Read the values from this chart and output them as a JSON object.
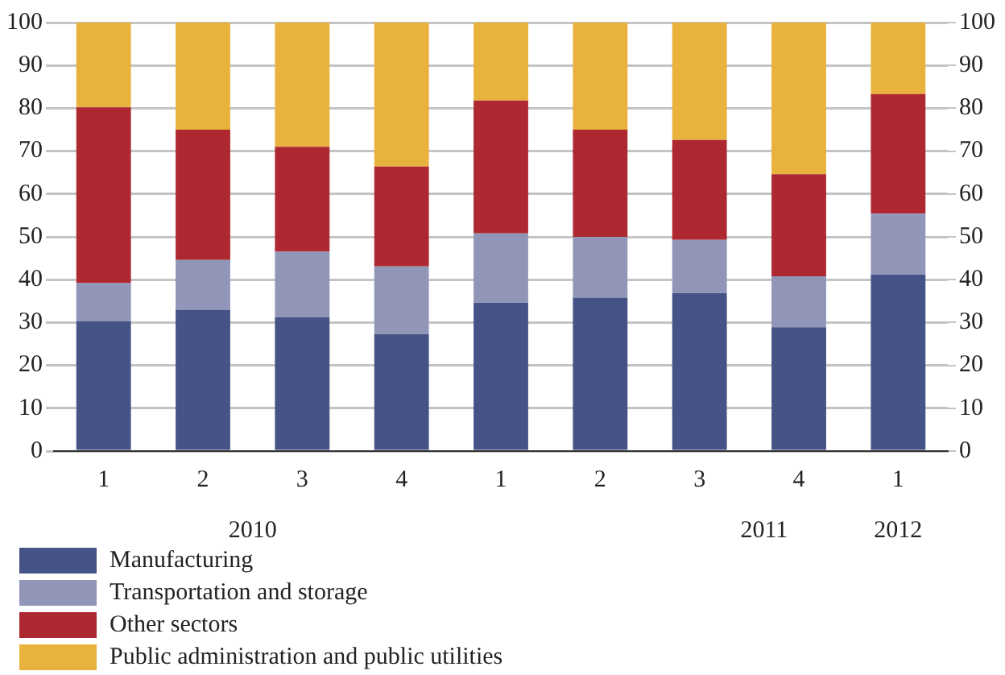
{
  "chart_data": {
    "type": "bar",
    "stacked": true,
    "categories": [
      "1",
      "2",
      "3",
      "4",
      "1",
      "2",
      "3",
      "4",
      "1"
    ],
    "series": [
      {
        "name": "Manufacturing",
        "color": "#455386",
        "values": [
          30.3,
          33,
          31.2,
          27.3,
          34.6,
          35.8,
          36.9,
          28.9,
          41.2
        ]
      },
      {
        "name": "Transportation and storage",
        "color": "#9196b8",
        "values": [
          8.9,
          11.6,
          15.3,
          15.8,
          16.2,
          14.2,
          12.4,
          11.9,
          14.2
        ]
      },
      {
        "name": "Other sectors",
        "color": "#ae2831",
        "values": [
          41,
          30.4,
          24.5,
          23.3,
          31,
          25,
          23.3,
          23.8,
          27.9
        ]
      },
      {
        "name": "Public administration and public utilities",
        "color": "#e8b23d",
        "values": [
          19.8,
          25,
          29,
          33.6,
          18.2,
          25,
          27.4,
          35.4,
          16.7
        ]
      }
    ],
    "ylim": [
      0,
      100
    ],
    "yticks": [
      0,
      10,
      20,
      30,
      40,
      50,
      60,
      70,
      80,
      90,
      100
    ],
    "y2lim": [
      0,
      100
    ],
    "y2ticks": [
      0,
      10,
      20,
      30,
      40,
      50,
      60,
      70,
      80,
      90,
      100
    ],
    "annotations": [
      "2010",
      "2011",
      "2012"
    ],
    "grid": "y",
    "legend": "bottom left"
  }
}
